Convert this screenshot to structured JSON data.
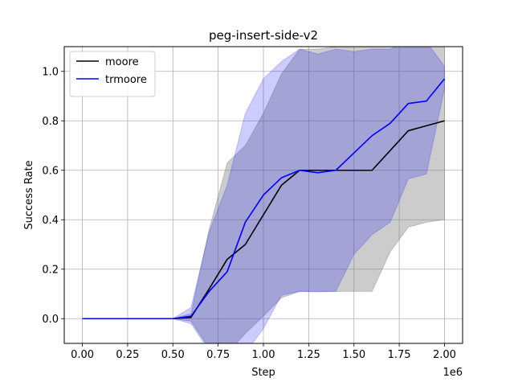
{
  "chart_data": {
    "type": "line",
    "title": "peg-insert-side-v2",
    "xlabel": "Step",
    "ylabel": "Success Rate",
    "x_offset_label": "1e6",
    "xlim": [
      -0.1,
      2.1
    ],
    "ylim": [
      -0.1,
      1.1
    ],
    "xticks": [
      0.0,
      0.25,
      0.5,
      0.75,
      1.0,
      1.25,
      1.5,
      1.75,
      2.0
    ],
    "xtick_labels": [
      "0.00",
      "0.25",
      "0.50",
      "0.75",
      "1.00",
      "1.25",
      "1.50",
      "1.75",
      "2.00"
    ],
    "yticks": [
      0.0,
      0.2,
      0.4,
      0.6,
      0.8,
      1.0
    ],
    "ytick_labels": [
      "0.0",
      "0.2",
      "0.4",
      "0.6",
      "0.8",
      "1.0"
    ],
    "grid": true,
    "legend_position": "top-left",
    "x": [
      0.0,
      0.1,
      0.2,
      0.3,
      0.4,
      0.5,
      0.6,
      0.7,
      0.8,
      0.9,
      1.0,
      1.1,
      1.2,
      1.3,
      1.4,
      1.5,
      1.6,
      1.7,
      1.8,
      1.9,
      2.0
    ],
    "series": [
      {
        "name": "moore",
        "color": "#000000",
        "band_color": "#808080",
        "band_opacity": 0.4,
        "values": [
          0.0,
          0.0,
          0.0,
          0.0,
          0.0,
          0.0,
          0.005,
          0.12,
          0.24,
          0.3,
          0.42,
          0.54,
          0.6,
          0.6,
          0.6,
          0.6,
          0.6,
          0.68,
          0.76,
          0.78,
          0.8
        ],
        "lower": [
          0.0,
          0.0,
          0.0,
          0.0,
          0.0,
          0.0,
          -0.01,
          -0.12,
          -0.14,
          -0.06,
          0.01,
          0.085,
          0.11,
          0.11,
          0.11,
          0.11,
          0.11,
          0.27,
          0.37,
          0.39,
          0.4
        ],
        "upper": [
          0.0,
          0.0,
          0.0,
          0.0,
          0.0,
          0.0,
          0.02,
          0.36,
          0.63,
          0.7,
          0.83,
          0.99,
          1.09,
          1.09,
          1.1,
          1.1,
          1.1,
          1.1,
          1.1,
          1.1,
          1.1
        ]
      },
      {
        "name": "trmoore",
        "color": "#0000ff",
        "band_color": "#0000ff",
        "band_opacity": 0.2,
        "values": [
          0.0,
          0.0,
          0.0,
          0.0,
          0.0,
          0.0,
          0.01,
          0.11,
          0.19,
          0.39,
          0.5,
          0.57,
          0.6,
          0.59,
          0.6,
          0.67,
          0.74,
          0.79,
          0.87,
          0.88,
          0.97
        ],
        "lower": [
          0.0,
          0.0,
          0.0,
          0.0,
          0.0,
          0.0,
          -0.02,
          -0.13,
          -0.14,
          -0.14,
          -0.04,
          0.095,
          0.11,
          0.108,
          0.11,
          0.26,
          0.34,
          0.39,
          0.565,
          0.585,
          0.93
        ],
        "upper": [
          0.0,
          0.0,
          0.0,
          0.0,
          0.0,
          0.0,
          0.045,
          0.35,
          0.54,
          0.83,
          0.97,
          1.04,
          1.09,
          1.07,
          1.09,
          1.08,
          1.09,
          1.09,
          1.12,
          1.12,
          1.02
        ]
      }
    ]
  }
}
